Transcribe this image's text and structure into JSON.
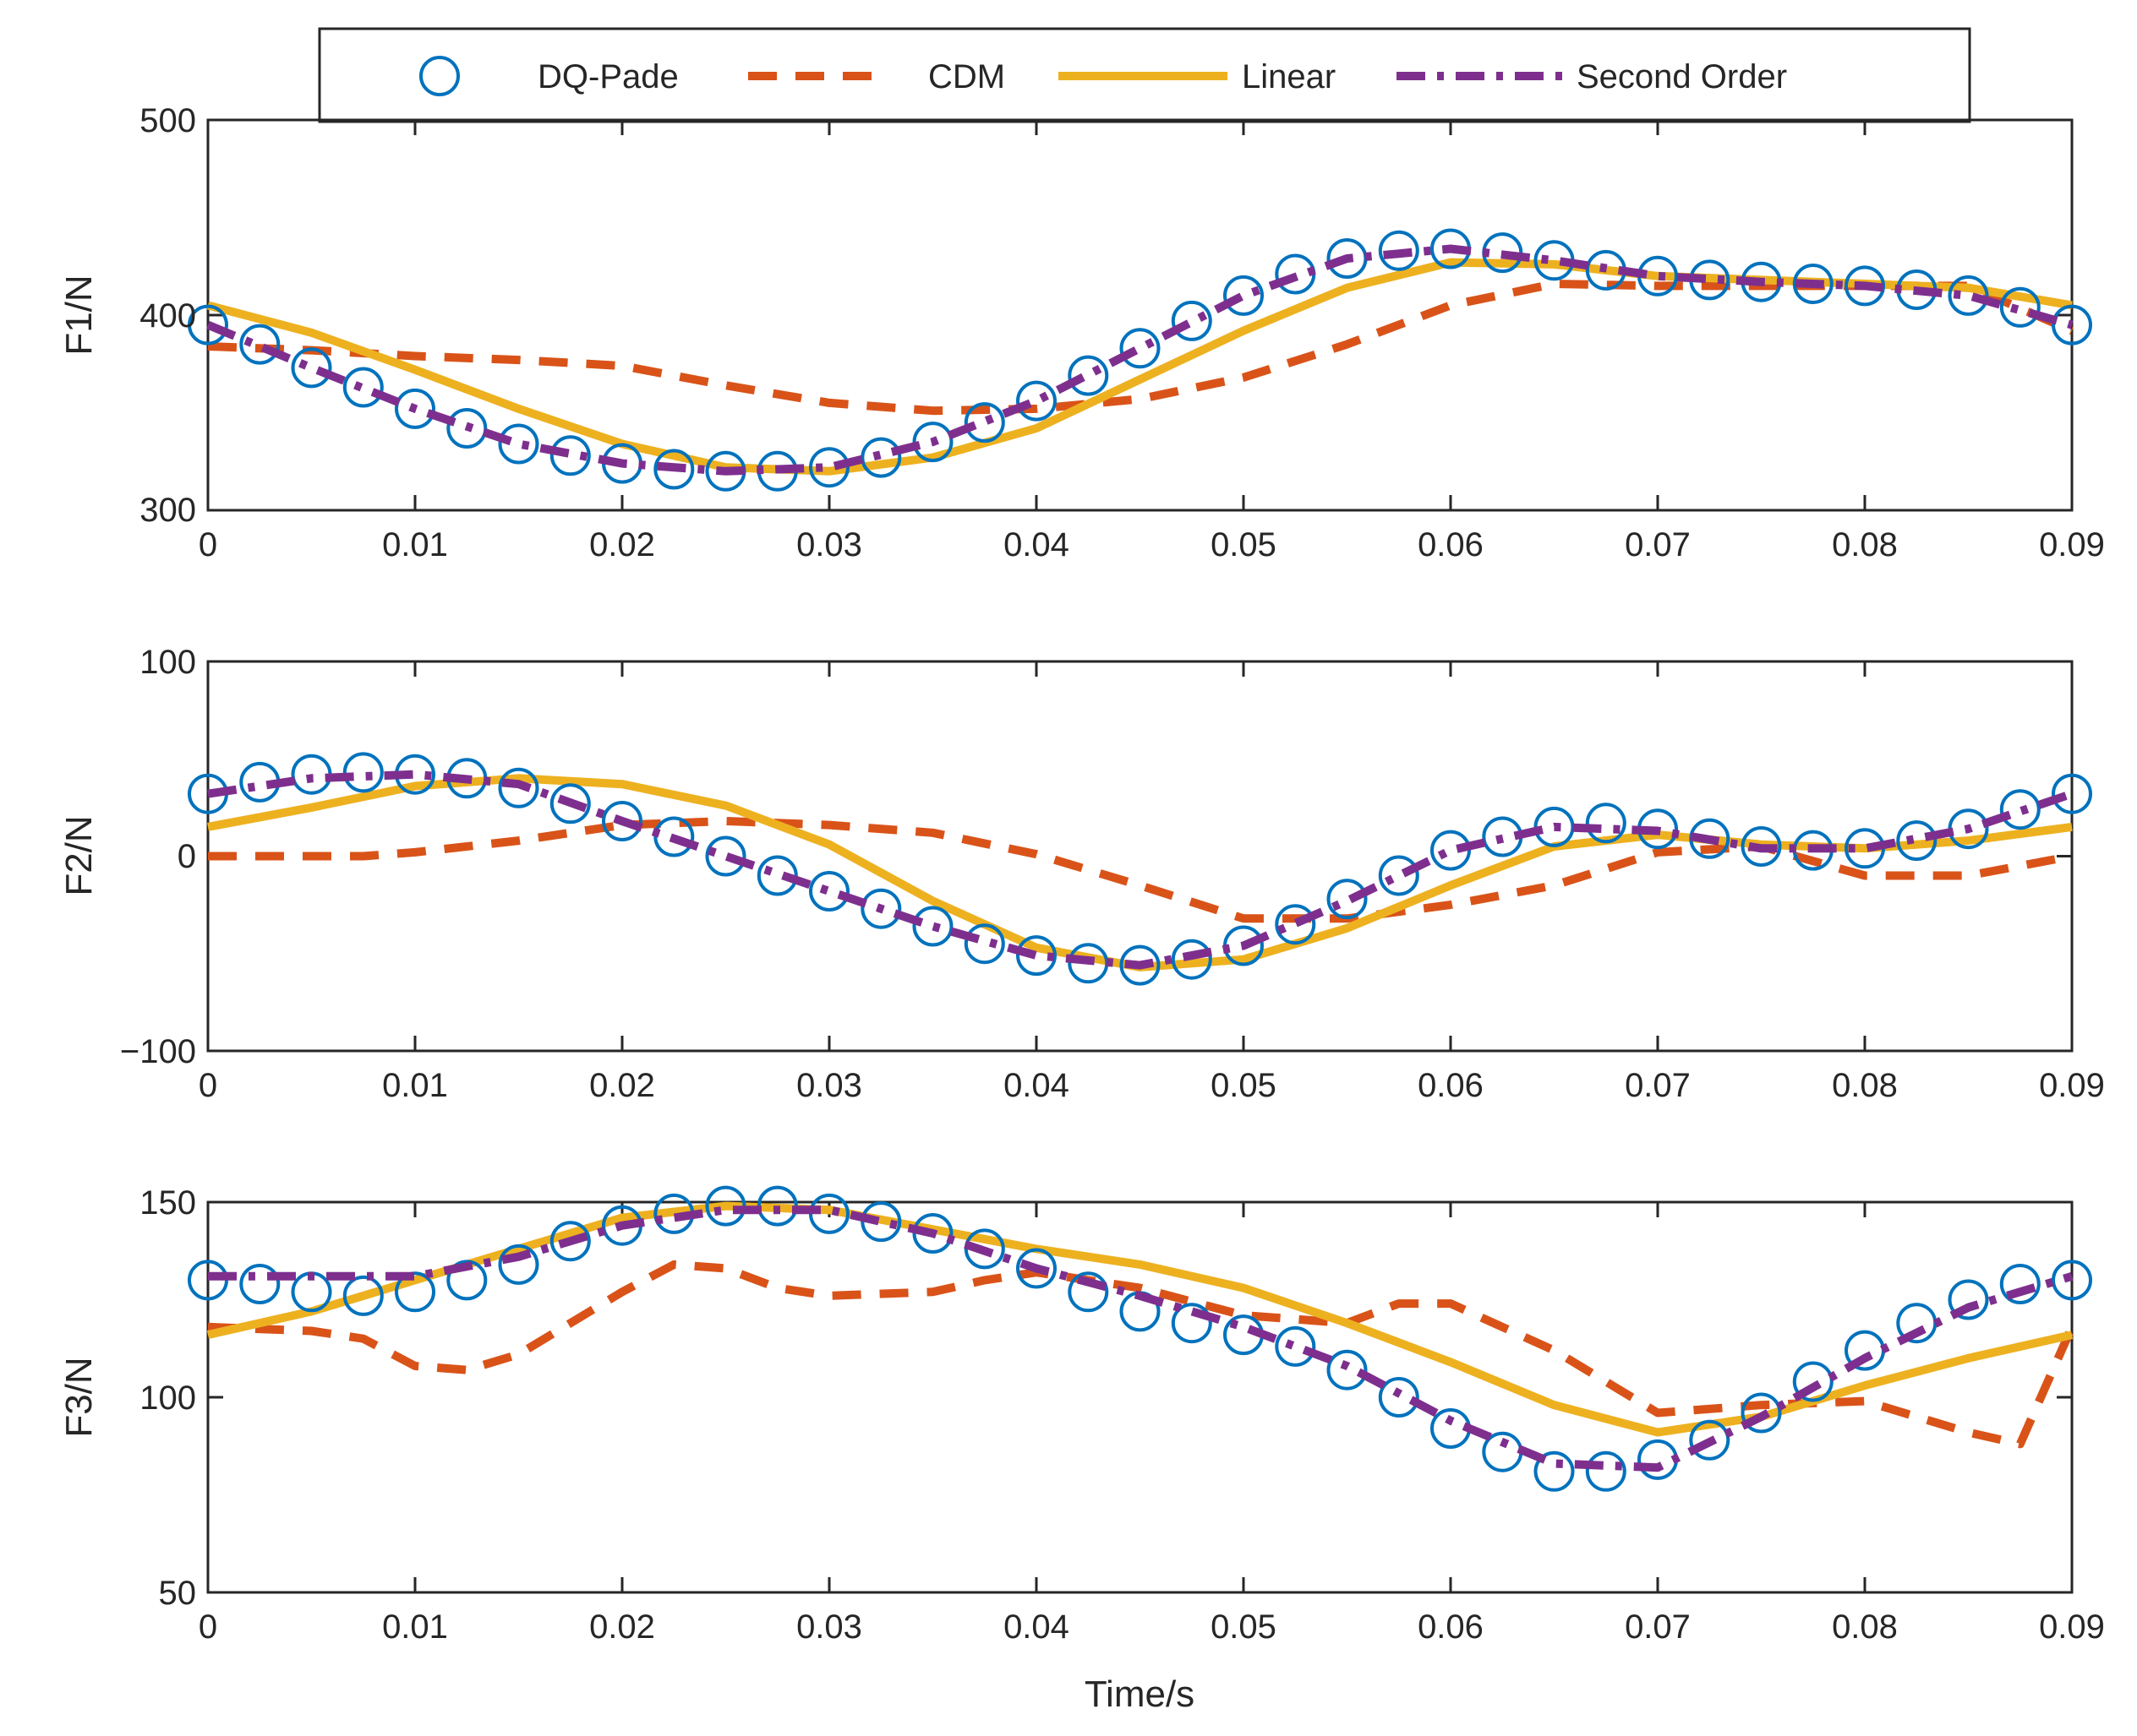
{
  "chart_data": {
    "type": "line",
    "xlabel": "Time/s",
    "x_ticks": [
      "0",
      "0.01",
      "0.02",
      "0.03",
      "0.04",
      "0.05",
      "0.06",
      "0.07",
      "0.08",
      "0.09"
    ],
    "xlim": [
      0,
      0.09
    ],
    "legend": {
      "position": "top",
      "entries": [
        {
          "key": "dq",
          "label": "DQ-Pade",
          "color": "#0072BD",
          "style": "markers-circle"
        },
        {
          "key": "cdm",
          "label": "CDM",
          "color": "#D95319",
          "style": "dashed"
        },
        {
          "key": "linear",
          "label": "Linear",
          "color": "#EDB120",
          "style": "solid"
        },
        {
          "key": "second",
          "label": "Second Order",
          "color": "#7E2F8E",
          "style": "dash-dot"
        }
      ]
    },
    "panels": [
      {
        "ylabel": "F1/N",
        "ylim": [
          300,
          500
        ],
        "y_ticks": [
          "300",
          "400",
          "500"
        ],
        "series": {
          "dq": {
            "x": [
              0,
              0.0025,
              0.005,
              0.0075,
              0.01,
              0.0125,
              0.015,
              0.0175,
              0.02,
              0.0225,
              0.025,
              0.0275,
              0.03,
              0.0325,
              0.035,
              0.0375,
              0.04,
              0.0425,
              0.045,
              0.0475,
              0.05,
              0.0525,
              0.055,
              0.0575,
              0.06,
              0.0625,
              0.065,
              0.0675,
              0.07,
              0.0725,
              0.075,
              0.0775,
              0.08,
              0.0825,
              0.085,
              0.0875,
              0.09
            ],
            "y": [
              395,
              385,
              373,
              363,
              352,
              342,
              334,
              328,
              324,
              321,
              320,
              320,
              322,
              327,
              335,
              345,
              356,
              369,
              383,
              397,
              410,
              421,
              429,
              433,
              434,
              432,
              428,
              423,
              420,
              418,
              417,
              416,
              415,
              413,
              410,
              404,
              395
            ]
          },
          "cdm": {
            "x": [
              0,
              0.005,
              0.01,
              0.015,
              0.02,
              0.025,
              0.03,
              0.035,
              0.04,
              0.045,
              0.05,
              0.055,
              0.06,
              0.065,
              0.07,
              0.075,
              0.08,
              0.085,
              0.09
            ],
            "y": [
              384,
              382,
              379,
              377,
              374,
              364,
              355,
              351,
              352,
              357,
              368,
              385,
              405,
              416,
              415,
              415,
              415,
              415,
              392
            ]
          },
          "linear": {
            "x": [
              0,
              0.005,
              0.01,
              0.015,
              0.02,
              0.025,
              0.03,
              0.035,
              0.04,
              0.045,
              0.05,
              0.055,
              0.06,
              0.065,
              0.07,
              0.075,
              0.08,
              0.085,
              0.09
            ],
            "y": [
              405,
              391,
              372,
              352,
              334,
              322,
              320,
              327,
              342,
              367,
              392,
              414,
              427,
              426,
              420,
              418,
              416,
              414,
              405
            ]
          },
          "second": {
            "x": [
              0,
              0.005,
              0.01,
              0.015,
              0.02,
              0.025,
              0.03,
              0.035,
              0.04,
              0.045,
              0.05,
              0.055,
              0.06,
              0.065,
              0.07,
              0.075,
              0.08,
              0.085,
              0.09
            ],
            "y": [
              395,
              373,
              352,
              334,
              324,
              320,
              322,
              335,
              356,
              383,
              410,
              429,
              434,
              428,
              420,
              417,
              415,
              410,
              395
            ]
          }
        }
      },
      {
        "ylabel": "F2/N",
        "ylim": [
          -100,
          100
        ],
        "y_ticks": [
          "−100",
          "0",
          "100"
        ],
        "series": {
          "dq": {
            "x": [
              0,
              0.0025,
              0.005,
              0.0075,
              0.01,
              0.0125,
              0.015,
              0.0175,
              0.02,
              0.0225,
              0.025,
              0.0275,
              0.03,
              0.0325,
              0.035,
              0.0375,
              0.04,
              0.0425,
              0.045,
              0.0475,
              0.05,
              0.0525,
              0.055,
              0.0575,
              0.06,
              0.0625,
              0.065,
              0.0675,
              0.07,
              0.0725,
              0.075,
              0.0775,
              0.08,
              0.0825,
              0.085,
              0.0875,
              0.09
            ],
            "y": [
              32,
              38,
              42,
              43,
              42,
              40,
              35,
              27,
              18,
              10,
              0,
              -10,
              -18,
              -27,
              -36,
              -45,
              -51,
              -55,
              -56,
              -53,
              -46,
              -35,
              -22,
              -10,
              3,
              10,
              15,
              17,
              14,
              9,
              5,
              3,
              4,
              8,
              14,
              24,
              32
            ]
          },
          "cdm": {
            "x": [
              0,
              0.0075,
              0.01,
              0.015,
              0.02,
              0.025,
              0.03,
              0.035,
              0.04,
              0.045,
              0.05,
              0.055,
              0.06,
              0.065,
              0.07,
              0.075,
              0.08,
              0.085,
              0.09
            ],
            "y": [
              0,
              0,
              2,
              8,
              16,
              18,
              16,
              12,
              1,
              -15,
              -32,
              -32,
              -25,
              -15,
              2,
              5,
              -10,
              -10,
              0
            ]
          },
          "linear": {
            "x": [
              0,
              0.005,
              0.01,
              0.015,
              0.02,
              0.025,
              0.03,
              0.035,
              0.04,
              0.045,
              0.05,
              0.055,
              0.06,
              0.065,
              0.07,
              0.075,
              0.08,
              0.085,
              0.09
            ],
            "y": [
              15,
              25,
              36,
              40,
              37,
              26,
              6,
              -23,
              -47,
              -57,
              -53,
              -37,
              -15,
              5,
              11,
              6,
              4,
              8,
              15
            ]
          },
          "second": {
            "x": [
              0,
              0.005,
              0.01,
              0.015,
              0.02,
              0.025,
              0.03,
              0.035,
              0.04,
              0.045,
              0.05,
              0.055,
              0.06,
              0.065,
              0.07,
              0.075,
              0.08,
              0.085,
              0.09
            ],
            "y": [
              32,
              40,
              42,
              37,
              18,
              0,
              -18,
              -36,
              -51,
              -56,
              -46,
              -23,
              3,
              15,
              13,
              4,
              4,
              14,
              32
            ]
          }
        }
      },
      {
        "ylabel": "F3/N",
        "ylim": [
          50,
          150
        ],
        "y_ticks": [
          "50",
          "100",
          "150"
        ],
        "series": {
          "dq": {
            "x": [
              0,
              0.0025,
              0.005,
              0.0075,
              0.01,
              0.0125,
              0.015,
              0.0175,
              0.02,
              0.0225,
              0.025,
              0.0275,
              0.03,
              0.0325,
              0.035,
              0.0375,
              0.04,
              0.0425,
              0.045,
              0.0475,
              0.05,
              0.0525,
              0.055,
              0.0575,
              0.06,
              0.0625,
              0.065,
              0.0675,
              0.07,
              0.0725,
              0.075,
              0.0775,
              0.08,
              0.0825,
              0.085,
              0.0875,
              0.09
            ],
            "y": [
              130,
              129,
              127,
              126,
              127,
              130,
              134,
              140,
              144,
              147,
              149,
              149,
              147,
              145,
              142,
              138,
              133,
              127,
              122,
              119,
              116,
              113,
              107,
              100,
              92,
              86,
              81,
              81,
              84,
              89,
              96,
              104,
              112,
              119,
              125,
              129,
              130
            ]
          },
          "cdm": {
            "x": [
              0,
              0.005,
              0.0075,
              0.01,
              0.0125,
              0.015,
              0.02,
              0.0225,
              0.025,
              0.0275,
              0.03,
              0.035,
              0.0375,
              0.04,
              0.045,
              0.05,
              0.055,
              0.0575,
              0.06,
              0.065,
              0.07,
              0.075,
              0.08,
              0.085,
              0.0875,
              0.09
            ],
            "y": [
              118,
              117,
              115,
              108,
              107,
              111,
              127,
              134,
              133,
              128,
              126,
              127,
              130,
              132,
              128,
              121,
              119,
              124,
              124,
              112,
              96,
              98,
              99,
              91,
              88,
              118
            ]
          },
          "linear": {
            "x": [
              0,
              0.005,
              0.01,
              0.015,
              0.02,
              0.025,
              0.03,
              0.035,
              0.04,
              0.045,
              0.05,
              0.055,
              0.06,
              0.065,
              0.07,
              0.075,
              0.08,
              0.085,
              0.09
            ],
            "y": [
              116,
              122,
              130,
              138,
              146,
              149,
              148,
              143,
              138,
              134,
              128,
              119,
              109,
              98,
              91,
              95,
              103,
              110,
              116
            ]
          },
          "second": {
            "x": [
              0,
              0.005,
              0.01,
              0.015,
              0.02,
              0.025,
              0.03,
              0.035,
              0.04,
              0.045,
              0.05,
              0.055,
              0.06,
              0.065,
              0.07,
              0.075,
              0.08,
              0.085,
              0.09
            ],
            "y": [
              131,
              131,
              131,
              136,
              144,
              148,
              148,
              142,
              133,
              126,
              118,
              108,
              94,
              83,
              82,
              95,
              110,
              123,
              131
            ]
          }
        }
      }
    ]
  }
}
